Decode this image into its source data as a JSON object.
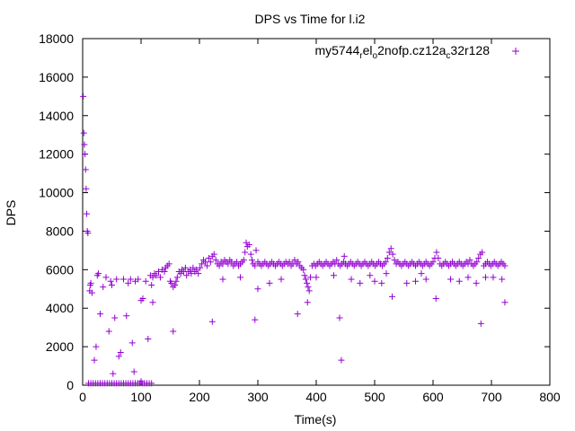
{
  "chart_data": {
    "type": "scatter",
    "title": "DPS vs Time for l.i2",
    "xlabel": "Time(s)",
    "ylabel": "DPS",
    "xlim": [
      0,
      800
    ],
    "ylim": [
      0,
      18000
    ],
    "x_ticks": [
      0,
      100,
      200,
      300,
      400,
      500,
      600,
      700,
      800
    ],
    "y_ticks": [
      0,
      2000,
      4000,
      6000,
      8000,
      10000,
      12000,
      14000,
      16000,
      18000
    ],
    "grid": false,
    "legend_position": "top-right",
    "marker": "+",
    "series": [
      {
        "name_parts": [
          {
            "text": "my5744",
            "sub": false
          },
          {
            "text": "r",
            "sub": true
          },
          {
            "text": "el",
            "sub": false
          },
          {
            "text": "o",
            "sub": true
          },
          {
            "text": "2nofp.cz12a",
            "sub": false
          },
          {
            "text": "c",
            "sub": true
          },
          {
            "text": "32r128",
            "sub": false
          }
        ],
        "color": "#9400d3",
        "points": [
          [
            1,
            15000
          ],
          [
            2,
            13100
          ],
          [
            3,
            12500
          ],
          [
            4,
            12000
          ],
          [
            5,
            11200
          ],
          [
            6,
            10200
          ],
          [
            7,
            8900
          ],
          [
            8,
            8000
          ],
          [
            9,
            7900
          ],
          [
            12,
            4900
          ],
          [
            13,
            5200
          ],
          [
            14,
            5300
          ],
          [
            16,
            4800
          ],
          [
            20,
            1300
          ],
          [
            23,
            2000
          ],
          [
            25,
            5700
          ],
          [
            27,
            5800
          ],
          [
            30,
            3700
          ],
          [
            35,
            5100
          ],
          [
            40,
            5600
          ],
          [
            45,
            2800
          ],
          [
            48,
            5400
          ],
          [
            50,
            5200
          ],
          [
            52,
            600
          ],
          [
            55,
            3500
          ],
          [
            58,
            5500
          ],
          [
            62,
            1500
          ],
          [
            65,
            1700
          ],
          [
            70,
            5500
          ],
          [
            75,
            3600
          ],
          [
            78,
            5300
          ],
          [
            82,
            5500
          ],
          [
            85,
            2200
          ],
          [
            88,
            700
          ],
          [
            90,
            5400
          ],
          [
            95,
            5500
          ],
          [
            100,
            4400
          ],
          [
            103,
            4500
          ],
          [
            108,
            5400
          ],
          [
            112,
            2400
          ],
          [
            116,
            5700
          ],
          [
            118,
            5200
          ],
          [
            120,
            4300
          ],
          [
            10,
            100
          ],
          [
            14,
            100
          ],
          [
            18,
            100
          ],
          [
            22,
            100
          ],
          [
            26,
            100
          ],
          [
            30,
            100
          ],
          [
            34,
            100
          ],
          [
            38,
            100
          ],
          [
            42,
            100
          ],
          [
            46,
            100
          ],
          [
            50,
            100
          ],
          [
            54,
            100
          ],
          [
            58,
            100
          ],
          [
            62,
            100
          ],
          [
            66,
            100
          ],
          [
            70,
            100
          ],
          [
            74,
            100
          ],
          [
            78,
            100
          ],
          [
            82,
            100
          ],
          [
            86,
            100
          ],
          [
            90,
            100
          ],
          [
            94,
            100
          ],
          [
            98,
            100
          ],
          [
            102,
            100
          ],
          [
            106,
            100
          ],
          [
            110,
            100
          ],
          [
            114,
            100
          ],
          [
            118,
            100
          ],
          [
            100,
            200
          ],
          [
            120,
            5600
          ],
          [
            123,
            5800
          ],
          [
            126,
            5700
          ],
          [
            130,
            5900
          ],
          [
            133,
            5600
          ],
          [
            136,
            6000
          ],
          [
            140,
            5900
          ],
          [
            142,
            6100
          ],
          [
            145,
            6200
          ],
          [
            148,
            6300
          ],
          [
            150,
            5400
          ],
          [
            152,
            5300
          ],
          [
            155,
            5100
          ],
          [
            158,
            5200
          ],
          [
            160,
            5400
          ],
          [
            162,
            5600
          ],
          [
            165,
            5900
          ],
          [
            168,
            5800
          ],
          [
            170,
            6000
          ],
          [
            173,
            5900
          ],
          [
            176,
            6100
          ],
          [
            178,
            5700
          ],
          [
            181,
            5900
          ],
          [
            184,
            6000
          ],
          [
            186,
            5800
          ],
          [
            189,
            6100
          ],
          [
            192,
            5900
          ],
          [
            195,
            6000
          ],
          [
            198,
            5800
          ],
          [
            201,
            6100
          ],
          [
            204,
            6300
          ],
          [
            207,
            6500
          ],
          [
            210,
            6400
          ],
          [
            213,
            6200
          ],
          [
            216,
            6600
          ],
          [
            219,
            6400
          ],
          [
            222,
            6700
          ],
          [
            225,
            6800
          ],
          [
            228,
            6500
          ],
          [
            231,
            6300
          ],
          [
            234,
            6200
          ],
          [
            237,
            6400
          ],
          [
            240,
            6300
          ],
          [
            243,
            6500
          ],
          [
            246,
            6400
          ],
          [
            249,
            6300
          ],
          [
            252,
            6500
          ],
          [
            255,
            6400
          ],
          [
            258,
            6200
          ],
          [
            261,
            6300
          ],
          [
            264,
            6400
          ],
          [
            267,
            6200
          ],
          [
            270,
            6300
          ],
          [
            273,
            6400
          ],
          [
            276,
            6500
          ],
          [
            278,
            6900
          ],
          [
            280,
            7400
          ],
          [
            282,
            7200
          ],
          [
            285,
            7300
          ],
          [
            288,
            6800
          ],
          [
            290,
            6500
          ],
          [
            292,
            6300
          ],
          [
            295,
            6200
          ],
          [
            297,
            7000
          ],
          [
            300,
            6400
          ],
          [
            303,
            6300
          ],
          [
            306,
            6200
          ],
          [
            309,
            6300
          ],
          [
            312,
            6400
          ],
          [
            315,
            6300
          ],
          [
            318,
            6200
          ],
          [
            321,
            6300
          ],
          [
            324,
            6400
          ],
          [
            327,
            6300
          ],
          [
            330,
            6200
          ],
          [
            333,
            6300
          ],
          [
            336,
            6400
          ],
          [
            339,
            6300
          ],
          [
            342,
            6200
          ],
          [
            345,
            6300
          ],
          [
            348,
            6400
          ],
          [
            351,
            6300
          ],
          [
            354,
            6400
          ],
          [
            357,
            6200
          ],
          [
            360,
            6300
          ],
          [
            363,
            6500
          ],
          [
            366,
            6300
          ],
          [
            369,
            6400
          ],
          [
            372,
            6200
          ],
          [
            375,
            6100
          ],
          [
            378,
            6000
          ],
          [
            380,
            5700
          ],
          [
            382,
            5500
          ],
          [
            384,
            5300
          ],
          [
            386,
            5100
          ],
          [
            388,
            4900
          ],
          [
            390,
            5600
          ],
          [
            393,
            6200
          ],
          [
            396,
            6300
          ],
          [
            399,
            6200
          ],
          [
            402,
            6300
          ],
          [
            405,
            6400
          ],
          [
            408,
            6300
          ],
          [
            411,
            6200
          ],
          [
            414,
            6300
          ],
          [
            417,
            6400
          ],
          [
            420,
            6300
          ],
          [
            423,
            6200
          ],
          [
            426,
            6300
          ],
          [
            429,
            6400
          ],
          [
            432,
            6300
          ],
          [
            435,
            6500
          ],
          [
            438,
            6300
          ],
          [
            441,
            6200
          ],
          [
            444,
            6300
          ],
          [
            447,
            6400
          ],
          [
            450,
            6300
          ],
          [
            453,
            6200
          ],
          [
            456,
            6300
          ],
          [
            459,
            6400
          ],
          [
            462,
            6300
          ],
          [
            465,
            6200
          ],
          [
            468,
            6300
          ],
          [
            471,
            6400
          ],
          [
            474,
            6300
          ],
          [
            477,
            6200
          ],
          [
            480,
            6300
          ],
          [
            483,
            6400
          ],
          [
            486,
            6300
          ],
          [
            489,
            6200
          ],
          [
            492,
            6300
          ],
          [
            495,
            6400
          ],
          [
            498,
            6300
          ],
          [
            501,
            6200
          ],
          [
            504,
            6300
          ],
          [
            507,
            6400
          ],
          [
            510,
            6300
          ],
          [
            513,
            6200
          ],
          [
            516,
            6300
          ],
          [
            519,
            6400
          ],
          [
            522,
            6600
          ],
          [
            525,
            6900
          ],
          [
            528,
            7100
          ],
          [
            531,
            6800
          ],
          [
            534,
            6500
          ],
          [
            537,
            6300
          ],
          [
            540,
            6400
          ],
          [
            543,
            6300
          ],
          [
            546,
            6200
          ],
          [
            549,
            6300
          ],
          [
            552,
            6400
          ],
          [
            555,
            6300
          ],
          [
            558,
            6200
          ],
          [
            561,
            6300
          ],
          [
            564,
            6400
          ],
          [
            567,
            6300
          ],
          [
            570,
            6200
          ],
          [
            573,
            6300
          ],
          [
            576,
            6400
          ],
          [
            579,
            6300
          ],
          [
            582,
            6200
          ],
          [
            585,
            6300
          ],
          [
            588,
            6400
          ],
          [
            591,
            6300
          ],
          [
            594,
            6200
          ],
          [
            597,
            6300
          ],
          [
            600,
            6400
          ],
          [
            603,
            6600
          ],
          [
            606,
            6900
          ],
          [
            609,
            6600
          ],
          [
            612,
            6300
          ],
          [
            615,
            6200
          ],
          [
            618,
            6300
          ],
          [
            621,
            6400
          ],
          [
            624,
            6300
          ],
          [
            627,
            6200
          ],
          [
            630,
            6300
          ],
          [
            633,
            6400
          ],
          [
            636,
            6300
          ],
          [
            639,
            6200
          ],
          [
            642,
            6300
          ],
          [
            645,
            6400
          ],
          [
            648,
            6300
          ],
          [
            651,
            6200
          ],
          [
            654,
            6300
          ],
          [
            657,
            6400
          ],
          [
            660,
            6300
          ],
          [
            663,
            6500
          ],
          [
            666,
            6300
          ],
          [
            669,
            6200
          ],
          [
            672,
            6300
          ],
          [
            675,
            6400
          ],
          [
            678,
            6600
          ],
          [
            681,
            6800
          ],
          [
            684,
            6900
          ],
          [
            687,
            6200
          ],
          [
            690,
            6300
          ],
          [
            693,
            6400
          ],
          [
            696,
            6300
          ],
          [
            699,
            6200
          ],
          [
            702,
            6300
          ],
          [
            705,
            6400
          ],
          [
            708,
            6300
          ],
          [
            711,
            6200
          ],
          [
            714,
            6300
          ],
          [
            717,
            6400
          ],
          [
            720,
            6300
          ],
          [
            723,
            6200
          ],
          [
            155,
            2800
          ],
          [
            222,
            3300
          ],
          [
            240,
            5500
          ],
          [
            270,
            5600
          ],
          [
            295,
            3400
          ],
          [
            300,
            5000
          ],
          [
            320,
            5300
          ],
          [
            340,
            5500
          ],
          [
            368,
            3700
          ],
          [
            385,
            4300
          ],
          [
            400,
            5600
          ],
          [
            430,
            5700
          ],
          [
            440,
            3500
          ],
          [
            443,
            1300
          ],
          [
            460,
            5500
          ],
          [
            475,
            5300
          ],
          [
            500,
            5400
          ],
          [
            512,
            5300
          ],
          [
            520,
            5800
          ],
          [
            530,
            4600
          ],
          [
            555,
            5300
          ],
          [
            570,
            5400
          ],
          [
            588,
            5500
          ],
          [
            605,
            4500
          ],
          [
            630,
            5500
          ],
          [
            645,
            5400
          ],
          [
            660,
            5600
          ],
          [
            674,
            5300
          ],
          [
            682,
            3200
          ],
          [
            690,
            5600
          ],
          [
            703,
            5600
          ],
          [
            718,
            5500
          ],
          [
            723,
            4300
          ],
          [
            448,
            6700
          ],
          [
            580,
            5800
          ],
          [
            492,
            5700
          ]
        ]
      }
    ]
  }
}
